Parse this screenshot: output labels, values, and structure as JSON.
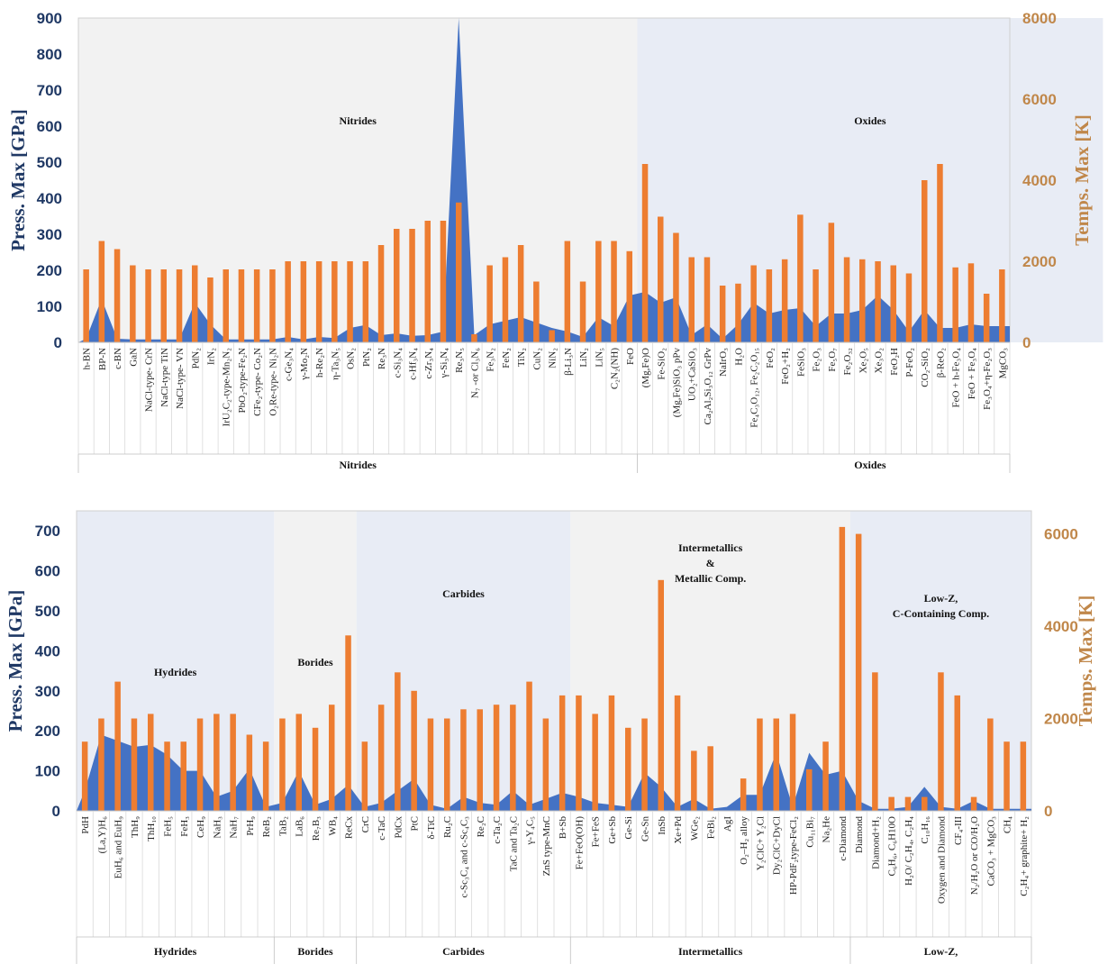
{
  "colors": {
    "pressure": "#4472C4",
    "temperature": "#ED7D31",
    "pressure_axis": "#1F3864",
    "temperature_axis": "#C0874A",
    "shade_blue": "#E8ECF5",
    "shade_gray": "#F2F2F2"
  },
  "chart_data": [
    {
      "type": "bar",
      "combined_with": "area",
      "ylabel_left": "Press. Max [GPa]",
      "ylabel_right": "Temps. Max [K]",
      "ylim_left": [
        0,
        900
      ],
      "ylim_right": [
        0,
        8000
      ],
      "yticks_left": [
        0,
        100,
        200,
        300,
        400,
        500,
        600,
        700,
        800,
        900
      ],
      "yticks_right": [
        0,
        2000,
        4000,
        6000,
        8000
      ],
      "groups": [
        {
          "name": "Nitrides",
          "region_title": [
            "Nitrides"
          ],
          "start": 0,
          "end": 36,
          "shade": "gray"
        },
        {
          "name": "Oxides",
          "region_title": [
            "Oxides"
          ],
          "start": 36,
          "end": 66,
          "shade": "blue"
        }
      ],
      "categories": [
        "h-BN",
        "BP-N",
        "c-BN",
        "GaN",
        "NaCl-type- CrN",
        "NaCl-type TiN",
        "NaCl-type- VN",
        "PdN₂",
        "IrN₂",
        "IrU₂C₂-type-Mn₂N₂",
        "PbO₂-type-Fe₂N",
        "CFe₂-type- Co₂N",
        "O₂Re-type- Ni₂N",
        "c-Ge₃N₄",
        "γ-Mo₂N",
        "h-Re₂N",
        "η-Ta₃N₅",
        "OsN₂",
        "PtN₂",
        "Re₃N",
        "c-Si₃N₄",
        "c-Hf₃N₄",
        "c-Zr₃N₄",
        "γ-Si₃N₄",
        "Re₃N₅",
        "N₇ -or Cl₃N₆",
        "Fe₃N₂",
        "FeN₂",
        "TiN₂",
        "CuN₂",
        "NiN₂",
        "β-Li₃N",
        "LiN₂",
        "LiN₅",
        "C₂N₂(NH)",
        "FeO",
        "(Mg,Fe)O",
        "Fe-SiO₂",
        "(Mg,Fe)SiO₃ pPv",
        "UO₂+CaSiO₃",
        "Ca₂Al₂Si₃O₁₂ GrPv",
        "NaIrO₃",
        "H₂O",
        "Fe₄C₃O₁₂, Fe₂C₂O₁₅",
        "FeO₂",
        "FeO₂+H₂",
        "FeSiO₃",
        "Fe₂O₃",
        "Fe₅O₇",
        "Fe₂O₃₂",
        "Xe₂O₅",
        "Xe₃O₂",
        "FeO₂H",
        "P-FeO₂",
        "CO₂-SiO₂",
        "β-ReO₂",
        "FeO + h-Fe₃O₄",
        "FeO + Fe₃O₄",
        "Fe₃O₄+η-Fe₂O₃",
        "MgCO₃"
      ],
      "series": [
        {
          "name": "Press. Max [GPa]",
          "kind": "area",
          "axis": "left",
          "values": [
            10,
            120,
            10,
            8,
            8,
            8,
            8,
            110,
            50,
            8,
            8,
            8,
            8,
            15,
            8,
            15,
            12,
            40,
            48,
            20,
            25,
            18,
            20,
            30,
            900,
            20,
            50,
            60,
            70,
            55,
            40,
            30,
            15,
            70,
            45,
            130,
            140,
            110,
            125,
            20,
            50,
            10,
            50,
            110,
            80,
            90,
            95,
            45,
            80,
            80,
            90,
            130,
            90,
            30,
            90,
            40,
            40,
            50,
            45,
            45
          ]
        },
        {
          "name": "Temps. Max [K]",
          "kind": "bar",
          "axis": "right",
          "values": [
            1800,
            2500,
            2300,
            1900,
            1800,
            1800,
            1800,
            1900,
            1600,
            1800,
            1800,
            1800,
            1800,
            2000,
            2000,
            2000,
            2000,
            2000,
            2000,
            2400,
            2800,
            2800,
            3000,
            3000,
            3450,
            200,
            1900,
            2100,
            2400,
            1500,
            300,
            2500,
            1500,
            2500,
            2500,
            2250,
            4400,
            3100,
            2700,
            2100,
            2100,
            1400,
            1450,
            1900,
            1800,
            2050,
            3150,
            1800,
            2950,
            2100,
            2050,
            2000,
            1900,
            1700,
            4000,
            4400,
            1850,
            1950,
            1200,
            1800
          ]
        }
      ]
    },
    {
      "type": "bar",
      "combined_with": "area",
      "ylabel_left": "Press. Max [GPa]",
      "ylabel_right": "Temps. Max [K]",
      "ylim_left": [
        0,
        750
      ],
      "ylim_right": [
        0,
        6500
      ],
      "yticks_left": [
        0,
        100,
        200,
        300,
        400,
        500,
        600,
        700
      ],
      "yticks_right": [
        0,
        2000,
        4000,
        6000
      ],
      "groups": [
        {
          "name": "Hydrides",
          "region_title": [
            "Hydrides"
          ],
          "start": 0,
          "end": 12,
          "shade": "blue"
        },
        {
          "name": "Borides",
          "region_title": [
            "Borides"
          ],
          "start": 12,
          "end": 17,
          "shade": "gray"
        },
        {
          "name": "Carbides",
          "region_title": [
            "Carbides"
          ],
          "start": 17,
          "end": 30,
          "shade": "blue"
        },
        {
          "name": "Intermetallics",
          "region_title": [
            "Intermetallics",
            "&",
            "Metallic Comp."
          ],
          "start": 30,
          "end": 47,
          "shade": "gray"
        },
        {
          "name": "Low-Z,",
          "region_title": [
            "Low-Z,",
            "C-Containing Comp."
          ],
          "start": 47,
          "end": 58,
          "shade": "blue"
        }
      ],
      "categories": [
        "PdH",
        "(La,Y)H₆",
        "EuH₆ and EuH₉",
        "ThH₉",
        "ThH₁₀",
        "FeH₅",
        "FeH₃",
        "CeH₉",
        "NaH₃",
        "NaH₇",
        "PrH₉",
        "ReB₂",
        "TaB₂",
        "LaB₆",
        "Re₇B₃",
        "WB₄",
        "ReCx",
        "CrC",
        "c-TaC",
        "PdCx",
        "PtC",
        "δ-TiC",
        "Ru₂C",
        "c-Sc₃C₄ and c-Sc₄C₃",
        "Re₂C",
        "c-Ta₂C",
        "TaC and Ta₂C",
        "γ-Y₄C₅",
        "ZnS type-MnC",
        "B+Sb",
        "Fe+FeO(OH)",
        "Fe+FeS",
        "Ge+Sb",
        "Ge-Si",
        "Ge-Sn",
        "InSb",
        "Xe+Pd",
        "WGe₂",
        "FeBi₂",
        "AgI",
        "O₂–H₂ alloy",
        "Y₂ClC+ Y₂Cl",
        "Dy₂ClC+DyCl",
        "HP-PdF₂type-FeCl₂",
        "Cu₁₁Bi₇",
        "Na₂He",
        "c-Diamond",
        "Diamond",
        "Diamond+H₂",
        "C₆H₆, C₆H10O",
        "H₂O/ C₂H₄, C₂H₄",
        "C₁₀H₁₆",
        "Oxygen and Diamond",
        "CF₄-III",
        "N₂/H₂O or CO/H₂O",
        "CaCO₃ + MgCO₃",
        "CH₄",
        "C₂H₄+ graphite+ H₂"
      ],
      "series": [
        {
          "name": "Press. Max [GPa]",
          "kind": "area",
          "axis": "left",
          "values": [
            50,
            190,
            175,
            160,
            165,
            140,
            100,
            100,
            35,
            50,
            105,
            10,
            20,
            100,
            15,
            30,
            65,
            10,
            20,
            50,
            80,
            15,
            5,
            35,
            20,
            15,
            50,
            15,
            30,
            45,
            35,
            20,
            15,
            10,
            95,
            60,
            10,
            30,
            5,
            10,
            40,
            40,
            145,
            10,
            145,
            90,
            100,
            25,
            5,
            5,
            10,
            60,
            10,
            5,
            25,
            5,
            5,
            5
          ]
        },
        {
          "name": "Temps. Max [K]",
          "kind": "bar",
          "axis": "right",
          "values": [
            1500,
            2000,
            2800,
            2000,
            2100,
            1500,
            1500,
            2000,
            2100,
            2100,
            1650,
            1500,
            2000,
            2100,
            1800,
            2300,
            3800,
            1500,
            2300,
            3000,
            2600,
            2000,
            2000,
            2200,
            2200,
            2300,
            2300,
            2800,
            2000,
            2500,
            2500,
            2100,
            2500,
            1800,
            2000,
            5000,
            2500,
            1300,
            1400,
            0,
            700,
            2000,
            2000,
            2100,
            900,
            1500,
            6150,
            6000,
            3000,
            300,
            300,
            300,
            3000,
            2500,
            300,
            2000,
            1500,
            1500
          ]
        }
      ]
    }
  ]
}
